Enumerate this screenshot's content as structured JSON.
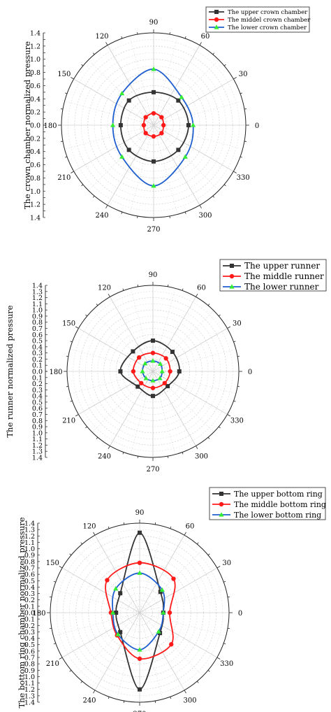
{
  "chart_data": [
    {
      "type": "polar-line",
      "ylabel": "The crown chamber normalized pressure",
      "radial_ticks": [
        "0.0",
        "0.2",
        "0.4",
        "0.6",
        "0.8",
        "1.0",
        "1.2",
        "1.4"
      ],
      "rlim": [
        0,
        1.4
      ],
      "angle_labels": [
        "0",
        "30",
        "60",
        "90",
        "120",
        "150",
        "180",
        "210",
        "240",
        "270",
        "300",
        "330"
      ],
      "angles": [
        0,
        45,
        90,
        135,
        180,
        225,
        270,
        315
      ],
      "legend": "top-right",
      "series": [
        {
          "name": "The upper crown chamber",
          "color": "#333333",
          "marker": "square",
          "values": [
            0.53,
            0.53,
            0.5,
            0.53,
            0.5,
            0.53,
            0.55,
            0.53
          ]
        },
        {
          "name": "The middel crown chamber",
          "color": "#ff1a1a",
          "marker": "circle",
          "values": [
            0.15,
            0.17,
            0.18,
            0.17,
            0.15,
            0.17,
            0.17,
            0.17
          ]
        },
        {
          "name": "The lower crown chamber",
          "color": "#1f5fd0",
          "marker": "triangle",
          "marker_color": "#33ee33",
          "values": [
            0.6,
            0.6,
            0.85,
            0.68,
            0.62,
            0.68,
            0.92,
            0.68
          ]
        }
      ]
    },
    {
      "type": "polar-line",
      "ylabel": "The runner normalized pressure",
      "radial_ticks": [
        "0.0",
        "0.1",
        "0.2",
        "0.3",
        "0.4",
        "0.5",
        "0.6",
        "0.7",
        "0.8",
        "0.9",
        "1.0",
        "1.1",
        "1.2",
        "1.3",
        "1.4"
      ],
      "rlim": [
        0,
        1.4
      ],
      "angle_labels": [
        "0",
        "30",
        "60",
        "90",
        "120",
        "150",
        "180",
        "210",
        "240",
        "270",
        "300",
        "330"
      ],
      "angles": [
        0,
        45,
        90,
        135,
        180,
        225,
        270,
        315
      ],
      "legend": "top-right",
      "series": [
        {
          "name": "The upper runner",
          "color": "#333333",
          "marker": "square",
          "values": [
            0.43,
            0.45,
            0.5,
            0.46,
            0.53,
            0.35,
            0.4,
            0.34
          ]
        },
        {
          "name": "The middle runner",
          "color": "#ff1a1a",
          "marker": "circle",
          "values": [
            0.28,
            0.3,
            0.3,
            0.32,
            0.32,
            0.27,
            0.27,
            0.27
          ]
        },
        {
          "name": "The lower runner",
          "color": "#1f5fd0",
          "marker": "triangle",
          "marker_color": "#33ee33",
          "values": [
            0.15,
            0.17,
            0.17,
            0.18,
            0.17,
            0.16,
            0.15,
            0.16
          ]
        }
      ]
    },
    {
      "type": "polar-line",
      "ylabel": "The bottom ring chamber normalized pressure",
      "radial_ticks": [
        "0.0",
        "0.1",
        "0.2",
        "0.3",
        "0.4",
        "0.5",
        "0.6",
        "0.7",
        "0.8",
        "0.9",
        "1.0",
        "1.1",
        "1.2",
        "1.3",
        "1.4"
      ],
      "rlim": [
        0,
        1.4
      ],
      "angle_labels": [
        "0",
        "30",
        "60",
        "90",
        "120",
        "150",
        "180",
        "210",
        "240",
        "270",
        "300",
        "330"
      ],
      "angles": [
        0,
        45,
        90,
        135,
        180,
        225,
        270,
        315
      ],
      "legend": "top-right",
      "series": [
        {
          "name": "The upper bottom ring",
          "color": "#333333",
          "marker": "square",
          "values": [
            0.37,
            0.46,
            1.25,
            0.43,
            0.37,
            0.43,
            1.2,
            0.45
          ]
        },
        {
          "name": "The middle bottom ring",
          "color": "#ff1a1a",
          "marker": "circle",
          "values": [
            0.47,
            0.75,
            0.78,
            0.72,
            0.45,
            0.5,
            0.72,
            0.7
          ]
        },
        {
          "name": "The lower bottom ring",
          "color": "#1f5fd0",
          "marker": "triangle",
          "marker_color": "#33ee33",
          "values": [
            0.37,
            0.5,
            0.62,
            0.53,
            0.42,
            0.48,
            0.58,
            0.42
          ]
        }
      ]
    }
  ]
}
